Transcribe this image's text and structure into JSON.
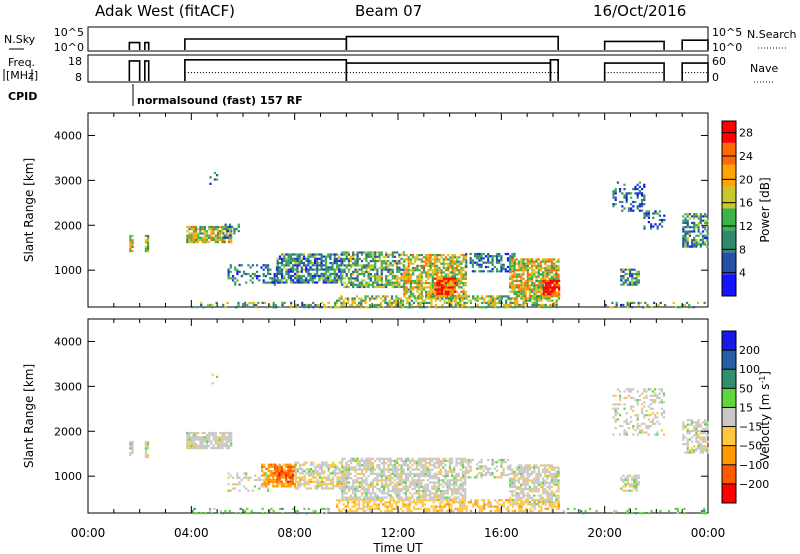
{
  "header": {
    "station": "Adak West (fitACF)",
    "beam": "Beam 07",
    "date": "16/Oct/2016"
  },
  "chart_data": [
    {
      "type": "line",
      "name": "noise-panel",
      "left_label": "N.Sky",
      "right_label": "N.Search",
      "left_ticks": [
        "10^5",
        "10^0"
      ],
      "right_ticks": [
        "10^5",
        "10^0"
      ],
      "x_range_hours": [
        0,
        24
      ],
      "series": [
        {
          "name": "N.Sky",
          "segments": [
            {
              "x": [
                1.6,
                1.7,
                1.9,
                2.0
              ],
              "y_level": 0.35
            },
            {
              "x": [
                2.2,
                2.35
              ],
              "y_level": 0.35
            },
            {
              "x": [
                3.75,
                10.0
              ],
              "y_level": 0.5
            },
            {
              "x": [
                10.0,
                18.2
              ],
              "y_level": 0.6
            },
            {
              "x": [
                20.0,
                22.3
              ],
              "y_level": 0.4
            },
            {
              "x": [
                23.0,
                24.0
              ],
              "y_level": 0.45
            }
          ]
        }
      ]
    },
    {
      "type": "line",
      "name": "freq-panel",
      "left_label_lines": [
        "Freq.",
        "[MHz]"
      ],
      "left_ticks": [
        "18",
        "8"
      ],
      "right_ticks": [
        "60",
        "0"
      ],
      "right_label": "Nave",
      "x_range_hours": [
        0,
        24
      ],
      "series": [
        {
          "name": "Freq.",
          "segments": [
            {
              "x": [
                1.6,
                2.0
              ],
              "y_level": 0.78
            },
            {
              "x": [
                2.2,
                2.35
              ],
              "y_level": 0.78
            },
            {
              "x": [
                3.75,
                10.0
              ],
              "y_level": 0.82
            },
            {
              "x": [
                10.0,
                17.9
              ],
              "y_level": 0.7
            },
            {
              "x": [
                17.9,
                18.2
              ],
              "y_level": 0.82
            },
            {
              "x": [
                20.0,
                22.3
              ],
              "y_level": 0.7
            },
            {
              "x": [
                23.0,
                24.0
              ],
              "y_level": 0.7
            }
          ]
        },
        {
          "name": "Nave",
          "dotted": true,
          "segments": [
            {
              "x": [
                3.75,
                18.2
              ],
              "y_level": 0.35
            },
            {
              "x": [
                20.0,
                22.3
              ],
              "y_level": 0.35
            },
            {
              "x": [
                23.0,
                24.0
              ],
              "y_level": 0.35
            }
          ]
        }
      ]
    },
    {
      "type": "table",
      "name": "cpid-row",
      "label": "CPID",
      "entries": [
        {
          "start_hour": 1.6,
          "text": "normalsound (fast) 157 RF"
        }
      ]
    },
    {
      "type": "heatmap",
      "name": "power-panel",
      "ylabel": "Slant Range [km]",
      "y_ticks": [
        1000,
        2000,
        3000,
        4000
      ],
      "ylim": [
        180,
        4500
      ],
      "x_range_hours": [
        0,
        24
      ],
      "colorbar": {
        "label": "Power [dB]",
        "ticks": [
          4,
          8,
          12,
          16,
          20,
          24,
          28
        ],
        "range": [
          0,
          30
        ],
        "colors": [
          "#1414ff",
          "#2650a6",
          "#2e8a6a",
          "#3cb44a",
          "#c8c828",
          "#ffa500",
          "#ff6a00",
          "#ff0000"
        ]
      },
      "regions": [
        {
          "t0": 1.6,
          "t1": 1.75,
          "r0": 1450,
          "r1": 1800,
          "intensity": 0.55,
          "density": 0.85
        },
        {
          "t0": 2.2,
          "t1": 2.35,
          "r0": 1450,
          "r1": 1800,
          "intensity": 0.55,
          "density": 0.85
        },
        {
          "t0": 3.8,
          "t1": 5.5,
          "r0": 1650,
          "r1": 2000,
          "intensity": 0.55,
          "density": 0.8
        },
        {
          "t0": 5.2,
          "t1": 5.8,
          "r0": 1750,
          "r1": 2050,
          "intensity": 0.3,
          "density": 0.4
        },
        {
          "t0": 4.7,
          "t1": 5.0,
          "r0": 2900,
          "r1": 3350,
          "intensity": 0.2,
          "density": 0.1
        },
        {
          "t0": 5.4,
          "t1": 7.4,
          "r0": 700,
          "r1": 1150,
          "intensity": 0.25,
          "density": 0.35
        },
        {
          "t0": 7.3,
          "t1": 9.8,
          "r0": 750,
          "r1": 1400,
          "intensity": 0.3,
          "density": 0.75
        },
        {
          "t0": 9.8,
          "t1": 12.2,
          "r0": 650,
          "r1": 1450,
          "intensity": 0.4,
          "density": 0.7
        },
        {
          "t0": 12.2,
          "t1": 14.6,
          "r0": 400,
          "r1": 1400,
          "intensity": 0.55,
          "density": 0.75
        },
        {
          "t0": 13.4,
          "t1": 14.2,
          "r0": 450,
          "r1": 850,
          "intensity": 0.85,
          "density": 0.9
        },
        {
          "t0": 14.6,
          "t1": 16.5,
          "r0": 1000,
          "r1": 1400,
          "intensity": 0.25,
          "density": 0.45
        },
        {
          "t0": 16.3,
          "t1": 18.2,
          "r0": 400,
          "r1": 1300,
          "intensity": 0.6,
          "density": 0.75
        },
        {
          "t0": 17.6,
          "t1": 18.2,
          "r0": 450,
          "r1": 800,
          "intensity": 0.95,
          "density": 0.9
        },
        {
          "t0": 9.6,
          "t1": 18.2,
          "r0": 200,
          "r1": 450,
          "intensity": 0.5,
          "density": 0.55
        },
        {
          "t0": 4.0,
          "t1": 9.6,
          "r0": 200,
          "r1": 320,
          "intensity": 0.4,
          "density": 0.3
        },
        {
          "t0": 20.0,
          "t1": 23.9,
          "r0": 200,
          "r1": 320,
          "intensity": 0.35,
          "density": 0.3
        },
        {
          "t0": 20.6,
          "t1": 21.3,
          "r0": 700,
          "r1": 1050,
          "intensity": 0.35,
          "density": 0.65
        },
        {
          "t0": 20.3,
          "t1": 21.5,
          "r0": 2350,
          "r1": 3000,
          "intensity": 0.2,
          "density": 0.3
        },
        {
          "t0": 21.5,
          "t1": 22.3,
          "r0": 1950,
          "r1": 2350,
          "intensity": 0.25,
          "density": 0.45
        },
        {
          "t0": 23.0,
          "t1": 24.0,
          "r0": 1550,
          "r1": 2300,
          "intensity": 0.35,
          "density": 0.6
        }
      ]
    },
    {
      "type": "heatmap",
      "name": "velocity-panel",
      "ylabel": "Slant Range [km]",
      "y_ticks": [
        1000,
        2000,
        3000,
        4000
      ],
      "ylim": [
        180,
        4500
      ],
      "x_range_hours": [
        0,
        24
      ],
      "xlabel": "Time UT",
      "x_ticks": [
        "00:00",
        "04:00",
        "08:00",
        "12:00",
        "16:00",
        "20:00",
        "00:00"
      ],
      "colorbar": {
        "label": "Velocity [m s-1]",
        "ticks": [
          200,
          100,
          50,
          15,
          -15,
          -50,
          -100,
          -200
        ],
        "colors": [
          "#1a1ae6",
          "#2a5fa8",
          "#2f8f6e",
          "#5fd640",
          "#c8c8c8",
          "#ffc840",
          "#ff9a00",
          "#ff5a00",
          "#ff0000"
        ]
      },
      "regions": [
        {
          "t0": 1.6,
          "t1": 1.75,
          "r0": 1450,
          "r1": 1800,
          "vclass": 4,
          "density": 0.85
        },
        {
          "t0": 2.2,
          "t1": 2.35,
          "r0": 1450,
          "r1": 1800,
          "vclass": 4,
          "density": 0.85
        },
        {
          "t0": 3.8,
          "t1": 5.5,
          "r0": 1650,
          "r1": 2000,
          "vclass": 4,
          "density": 0.8
        },
        {
          "t0": 6.7,
          "t1": 8.0,
          "r0": 800,
          "r1": 1300,
          "vclass": 6,
          "density": 0.75
        },
        {
          "t0": 7.2,
          "t1": 7.9,
          "r0": 900,
          "r1": 1250,
          "vclass": 7,
          "density": 0.6
        },
        {
          "t0": 5.4,
          "t1": 7.0,
          "r0": 700,
          "r1": 1100,
          "vclass": 4,
          "density": 0.3
        },
        {
          "t0": 8.0,
          "t1": 10.0,
          "r0": 750,
          "r1": 1350,
          "vclass": 4,
          "density": 0.6
        },
        {
          "t0": 8.0,
          "t1": 9.8,
          "r0": 850,
          "r1": 1000,
          "vclass": 5,
          "density": 0.4
        },
        {
          "t0": 9.8,
          "t1": 14.6,
          "r0": 500,
          "r1": 1450,
          "vclass": 4,
          "density": 0.7
        },
        {
          "t0": 14.6,
          "t1": 16.3,
          "r0": 1000,
          "r1": 1400,
          "vclass": 4,
          "density": 0.4
        },
        {
          "t0": 16.3,
          "t1": 18.2,
          "r0": 400,
          "r1": 1300,
          "vclass": 4,
          "density": 0.7
        },
        {
          "t0": 9.6,
          "t1": 18.2,
          "r0": 250,
          "r1": 500,
          "vclass": 5,
          "density": 0.55
        },
        {
          "t0": 4.0,
          "t1": 9.6,
          "r0": 200,
          "r1": 330,
          "vclass": 3,
          "density": 0.3
        },
        {
          "t0": 18.2,
          "t1": 23.9,
          "r0": 200,
          "r1": 330,
          "vclass": 3,
          "density": 0.15
        },
        {
          "t0": 20.6,
          "t1": 21.3,
          "r0": 700,
          "r1": 1050,
          "vclass": 4,
          "density": 0.65
        },
        {
          "t0": 20.3,
          "t1": 22.3,
          "r0": 1950,
          "r1": 3000,
          "vclass": 4,
          "density": 0.3
        },
        {
          "t0": 23.0,
          "t1": 24.0,
          "r0": 1550,
          "r1": 2300,
          "vclass": 4,
          "density": 0.6
        },
        {
          "t0": 4.7,
          "t1": 5.0,
          "r0": 2900,
          "r1": 3350,
          "vclass": 4,
          "density": 0.1
        }
      ]
    }
  ]
}
